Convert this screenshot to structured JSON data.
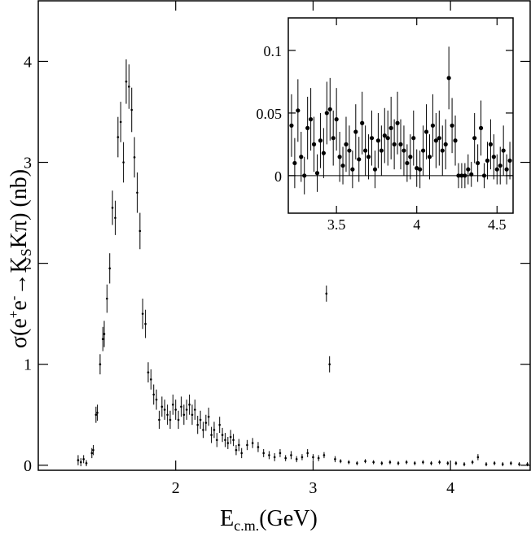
{
  "chart_data": [
    {
      "type": "errorbar",
      "xlabel_parts": [
        "E",
        "c.m.",
        "(GeV)"
      ],
      "ylabel_parts": [
        "σ(e",
        "+",
        "e",
        "-",
        "→K",
        "S",
        "Kπ) (nb)"
      ],
      "xlim": [
        1.0,
        4.58
      ],
      "ylim": [
        -0.05,
        4.6
      ],
      "xticks": [
        2,
        3,
        4
      ],
      "yticks": [
        0,
        1,
        2,
        3,
        4
      ],
      "color": "#000000",
      "x": [
        1.29,
        1.31,
        1.33,
        1.35,
        1.39,
        1.4,
        1.42,
        1.43,
        1.45,
        1.47,
        1.48,
        1.5,
        1.52,
        1.54,
        1.56,
        1.58,
        1.6,
        1.62,
        1.64,
        1.66,
        1.68,
        1.7,
        1.72,
        1.74,
        1.76,
        1.78,
        1.8,
        1.82,
        1.84,
        1.86,
        1.88,
        1.9,
        1.92,
        1.94,
        1.96,
        1.98,
        2.0,
        2.02,
        2.04,
        2.06,
        2.08,
        2.1,
        2.12,
        2.14,
        2.16,
        2.18,
        2.2,
        2.22,
        2.24,
        2.26,
        2.28,
        2.3,
        2.32,
        2.34,
        2.36,
        2.38,
        2.4,
        2.42,
        2.44,
        2.46,
        2.48,
        2.52,
        2.56,
        2.6,
        2.64,
        2.68,
        2.72,
        2.76,
        2.8,
        2.84,
        2.88,
        2.92,
        2.96,
        3.0,
        3.04,
        3.08,
        3.097,
        3.12,
        3.16,
        3.2,
        3.26,
        3.32,
        3.38,
        3.44,
        3.5,
        3.56,
        3.62,
        3.68,
        3.74,
        3.8,
        3.86,
        3.92,
        3.98,
        4.04,
        4.1,
        4.16,
        4.2,
        4.26,
        4.32,
        4.38,
        4.44,
        4.5,
        4.56
      ],
      "values": [
        0.05,
        0.03,
        0.06,
        0.02,
        0.12,
        0.15,
        0.5,
        0.52,
        1.0,
        1.25,
        1.3,
        1.65,
        1.95,
        2.55,
        2.45,
        3.25,
        3.4,
        3.0,
        3.8,
        3.75,
        3.52,
        3.05,
        2.7,
        2.32,
        1.5,
        1.4,
        0.92,
        0.85,
        0.7,
        0.65,
        0.45,
        0.58,
        0.55,
        0.5,
        0.45,
        0.6,
        0.55,
        0.45,
        0.58,
        0.5,
        0.55,
        0.6,
        0.5,
        0.55,
        0.4,
        0.45,
        0.35,
        0.42,
        0.48,
        0.3,
        0.35,
        0.25,
        0.4,
        0.3,
        0.25,
        0.22,
        0.28,
        0.25,
        0.15,
        0.2,
        0.12,
        0.2,
        0.22,
        0.18,
        0.12,
        0.1,
        0.08,
        0.12,
        0.07,
        0.1,
        0.06,
        0.08,
        0.12,
        0.08,
        0.07,
        0.1,
        1.7,
        1.0,
        0.06,
        0.04,
        0.03,
        0.02,
        0.04,
        0.03,
        0.02,
        0.03,
        0.02,
        0.03,
        0.02,
        0.03,
        0.02,
        0.03,
        0.02,
        0.02,
        0.01,
        0.03,
        0.08,
        0.01,
        0.02,
        0.01,
        0.02,
        0.01,
        0.01
      ],
      "errors": [
        0.05,
        0.04,
        0.04,
        0.03,
        0.05,
        0.05,
        0.08,
        0.08,
        0.1,
        0.12,
        0.13,
        0.14,
        0.15,
        0.17,
        0.17,
        0.2,
        0.2,
        0.2,
        0.22,
        0.22,
        0.22,
        0.2,
        0.2,
        0.18,
        0.15,
        0.14,
        0.1,
        0.1,
        0.1,
        0.1,
        0.09,
        0.1,
        0.1,
        0.1,
        0.09,
        0.1,
        0.1,
        0.09,
        0.1,
        0.1,
        0.1,
        0.1,
        0.1,
        0.1,
        0.09,
        0.09,
        0.08,
        0.08,
        0.09,
        0.08,
        0.08,
        0.07,
        0.08,
        0.07,
        0.07,
        0.06,
        0.07,
        0.06,
        0.05,
        0.06,
        0.05,
        0.05,
        0.05,
        0.05,
        0.04,
        0.04,
        0.04,
        0.04,
        0.03,
        0.04,
        0.03,
        0.03,
        0.04,
        0.03,
        0.03,
        0.03,
        0.08,
        0.08,
        0.03,
        0.02,
        0.02,
        0.02,
        0.02,
        0.02,
        0.02,
        0.02,
        0.02,
        0.02,
        0.02,
        0.02,
        0.02,
        0.02,
        0.02,
        0.02,
        0.02,
        0.02,
        0.03,
        0.02,
        0.02,
        0.02,
        0.02,
        0.02,
        0.02
      ]
    },
    {
      "type": "errorbar",
      "xlim": [
        3.2,
        4.6
      ],
      "ylim": [
        -0.03,
        0.126
      ],
      "xticks": [
        3.5,
        4,
        4.5
      ],
      "yticks": [
        0,
        0.05,
        0.1
      ],
      "zero_line": true,
      "color": "#000000",
      "x": [
        3.22,
        3.24,
        3.26,
        3.28,
        3.3,
        3.32,
        3.34,
        3.36,
        3.38,
        3.4,
        3.42,
        3.44,
        3.46,
        3.48,
        3.5,
        3.52,
        3.54,
        3.56,
        3.58,
        3.6,
        3.62,
        3.64,
        3.66,
        3.68,
        3.7,
        3.72,
        3.74,
        3.76,
        3.78,
        3.8,
        3.82,
        3.84,
        3.86,
        3.88,
        3.9,
        3.92,
        3.94,
        3.96,
        3.98,
        4.0,
        4.02,
        4.04,
        4.06,
        4.08,
        4.1,
        4.12,
        4.14,
        4.16,
        4.18,
        4.2,
        4.22,
        4.24,
        4.26,
        4.28,
        4.3,
        4.32,
        4.34,
        4.36,
        4.38,
        4.4,
        4.42,
        4.44,
        4.46,
        4.48,
        4.5,
        4.52,
        4.54,
        4.56,
        4.58
      ],
      "values": [
        0.04,
        0.01,
        0.052,
        0.015,
        0.0,
        0.038,
        0.045,
        0.025,
        0.002,
        0.028,
        0.018,
        0.05,
        0.053,
        0.03,
        0.045,
        0.015,
        0.008,
        0.025,
        0.02,
        0.005,
        0.035,
        0.013,
        0.042,
        0.02,
        0.015,
        0.03,
        0.005,
        0.028,
        0.02,
        0.032,
        0.03,
        0.038,
        0.025,
        0.042,
        0.025,
        0.02,
        0.01,
        0.015,
        0.03,
        0.006,
        0.005,
        0.02,
        0.035,
        0.015,
        0.04,
        0.028,
        0.03,
        0.02,
        0.025,
        0.078,
        0.04,
        0.028,
        0.0,
        0.0,
        0.0,
        0.005,
        0.001,
        0.03,
        0.01,
        0.038,
        0.0,
        0.012,
        0.025,
        0.015,
        0.005,
        0.008,
        0.02,
        0.005,
        0.012
      ],
      "errors": [
        0.025,
        0.02,
        0.025,
        0.02,
        0.015,
        0.025,
        0.025,
        0.022,
        0.015,
        0.022,
        0.02,
        0.025,
        0.025,
        0.022,
        0.025,
        0.02,
        0.015,
        0.022,
        0.02,
        0.015,
        0.022,
        0.018,
        0.025,
        0.02,
        0.018,
        0.022,
        0.015,
        0.022,
        0.02,
        0.022,
        0.022,
        0.025,
        0.02,
        0.025,
        0.02,
        0.02,
        0.015,
        0.018,
        0.022,
        0.015,
        0.015,
        0.02,
        0.022,
        0.018,
        0.025,
        0.022,
        0.022,
        0.02,
        0.02,
        0.025,
        0.022,
        0.02,
        0.01,
        0.01,
        0.01,
        0.012,
        0.01,
        0.02,
        0.015,
        0.022,
        0.01,
        0.015,
        0.02,
        0.018,
        0.012,
        0.015,
        0.02,
        0.012,
        0.015
      ]
    }
  ]
}
